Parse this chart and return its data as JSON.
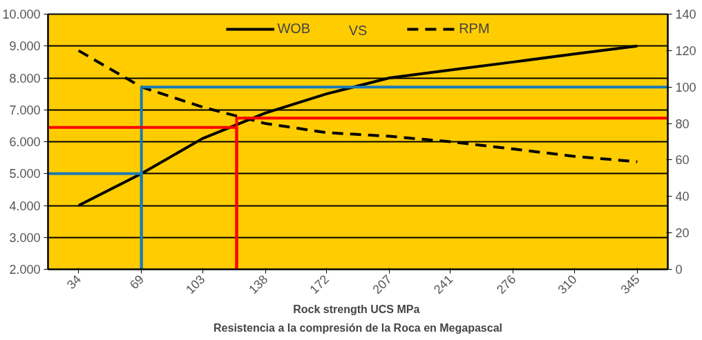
{
  "chart_data": {
    "type": "line",
    "xlabel": "Rock strength UCS  MPa",
    "annotations": [
      "VS",
      "Resistencia a la compresión de la Roca en Megapascal"
    ],
    "x": [
      34,
      69,
      103,
      138,
      172,
      207,
      241,
      276,
      310,
      345
    ],
    "xlim": [
      17,
      362
    ],
    "xticks": [
      34,
      69,
      103,
      138,
      172,
      207,
      241,
      276,
      310,
      345
    ],
    "ylim": [
      2000,
      10000
    ],
    "yticks": [
      {
        "value": 2000,
        "label": "2.000"
      },
      {
        "value": 3000,
        "label": "3.000"
      },
      {
        "value": 4000,
        "label": "4.000"
      },
      {
        "value": 5000,
        "label": "5.000"
      },
      {
        "value": 6000,
        "label": "6.000"
      },
      {
        "value": 7000,
        "label": "7.000"
      },
      {
        "value": 8000,
        "label": "8.000"
      },
      {
        "value": 9000,
        "label": "9.000"
      },
      {
        "value": 10000,
        "label": "10.000"
      }
    ],
    "y2lim": [
      0,
      140
    ],
    "y2ticks": [
      0,
      20,
      40,
      60,
      80,
      100,
      120,
      140
    ],
    "grid": "y",
    "legend": "top",
    "series": [
      {
        "name": "WOB",
        "color": "#000000",
        "line_style": "solid",
        "values": [
          4000,
          5000,
          6100,
          6900,
          7500,
          8000,
          8250,
          8500,
          8750,
          9000
        ]
      },
      {
        "name": "RPM",
        "color": "#000000",
        "line_style": "dashed",
        "axis": "y2",
        "values": [
          120,
          100,
          89,
          80,
          75,
          73,
          70,
          66,
          62,
          59
        ]
      },
      {
        "color": "#1a7ab5",
        "line_style": "solid",
        "x": [
          17,
          69,
          69
        ],
        "values": [
          5000,
          5000,
          2000
        ]
      },
      {
        "color": "#1a7ab5",
        "line_style": "solid",
        "axis": "y2",
        "x": [
          69,
          69,
          362
        ],
        "values": [
          0,
          100,
          100
        ]
      },
      {
        "color": "#ff0000",
        "line_style": "solid",
        "x": [
          17,
          122,
          122
        ],
        "values": [
          6450,
          6450,
          2000
        ]
      },
      {
        "color": "#ff0000",
        "line_style": "solid",
        "axis": "y2",
        "x": [
          122,
          122,
          362
        ],
        "values": [
          0,
          83,
          83
        ]
      }
    ]
  }
}
